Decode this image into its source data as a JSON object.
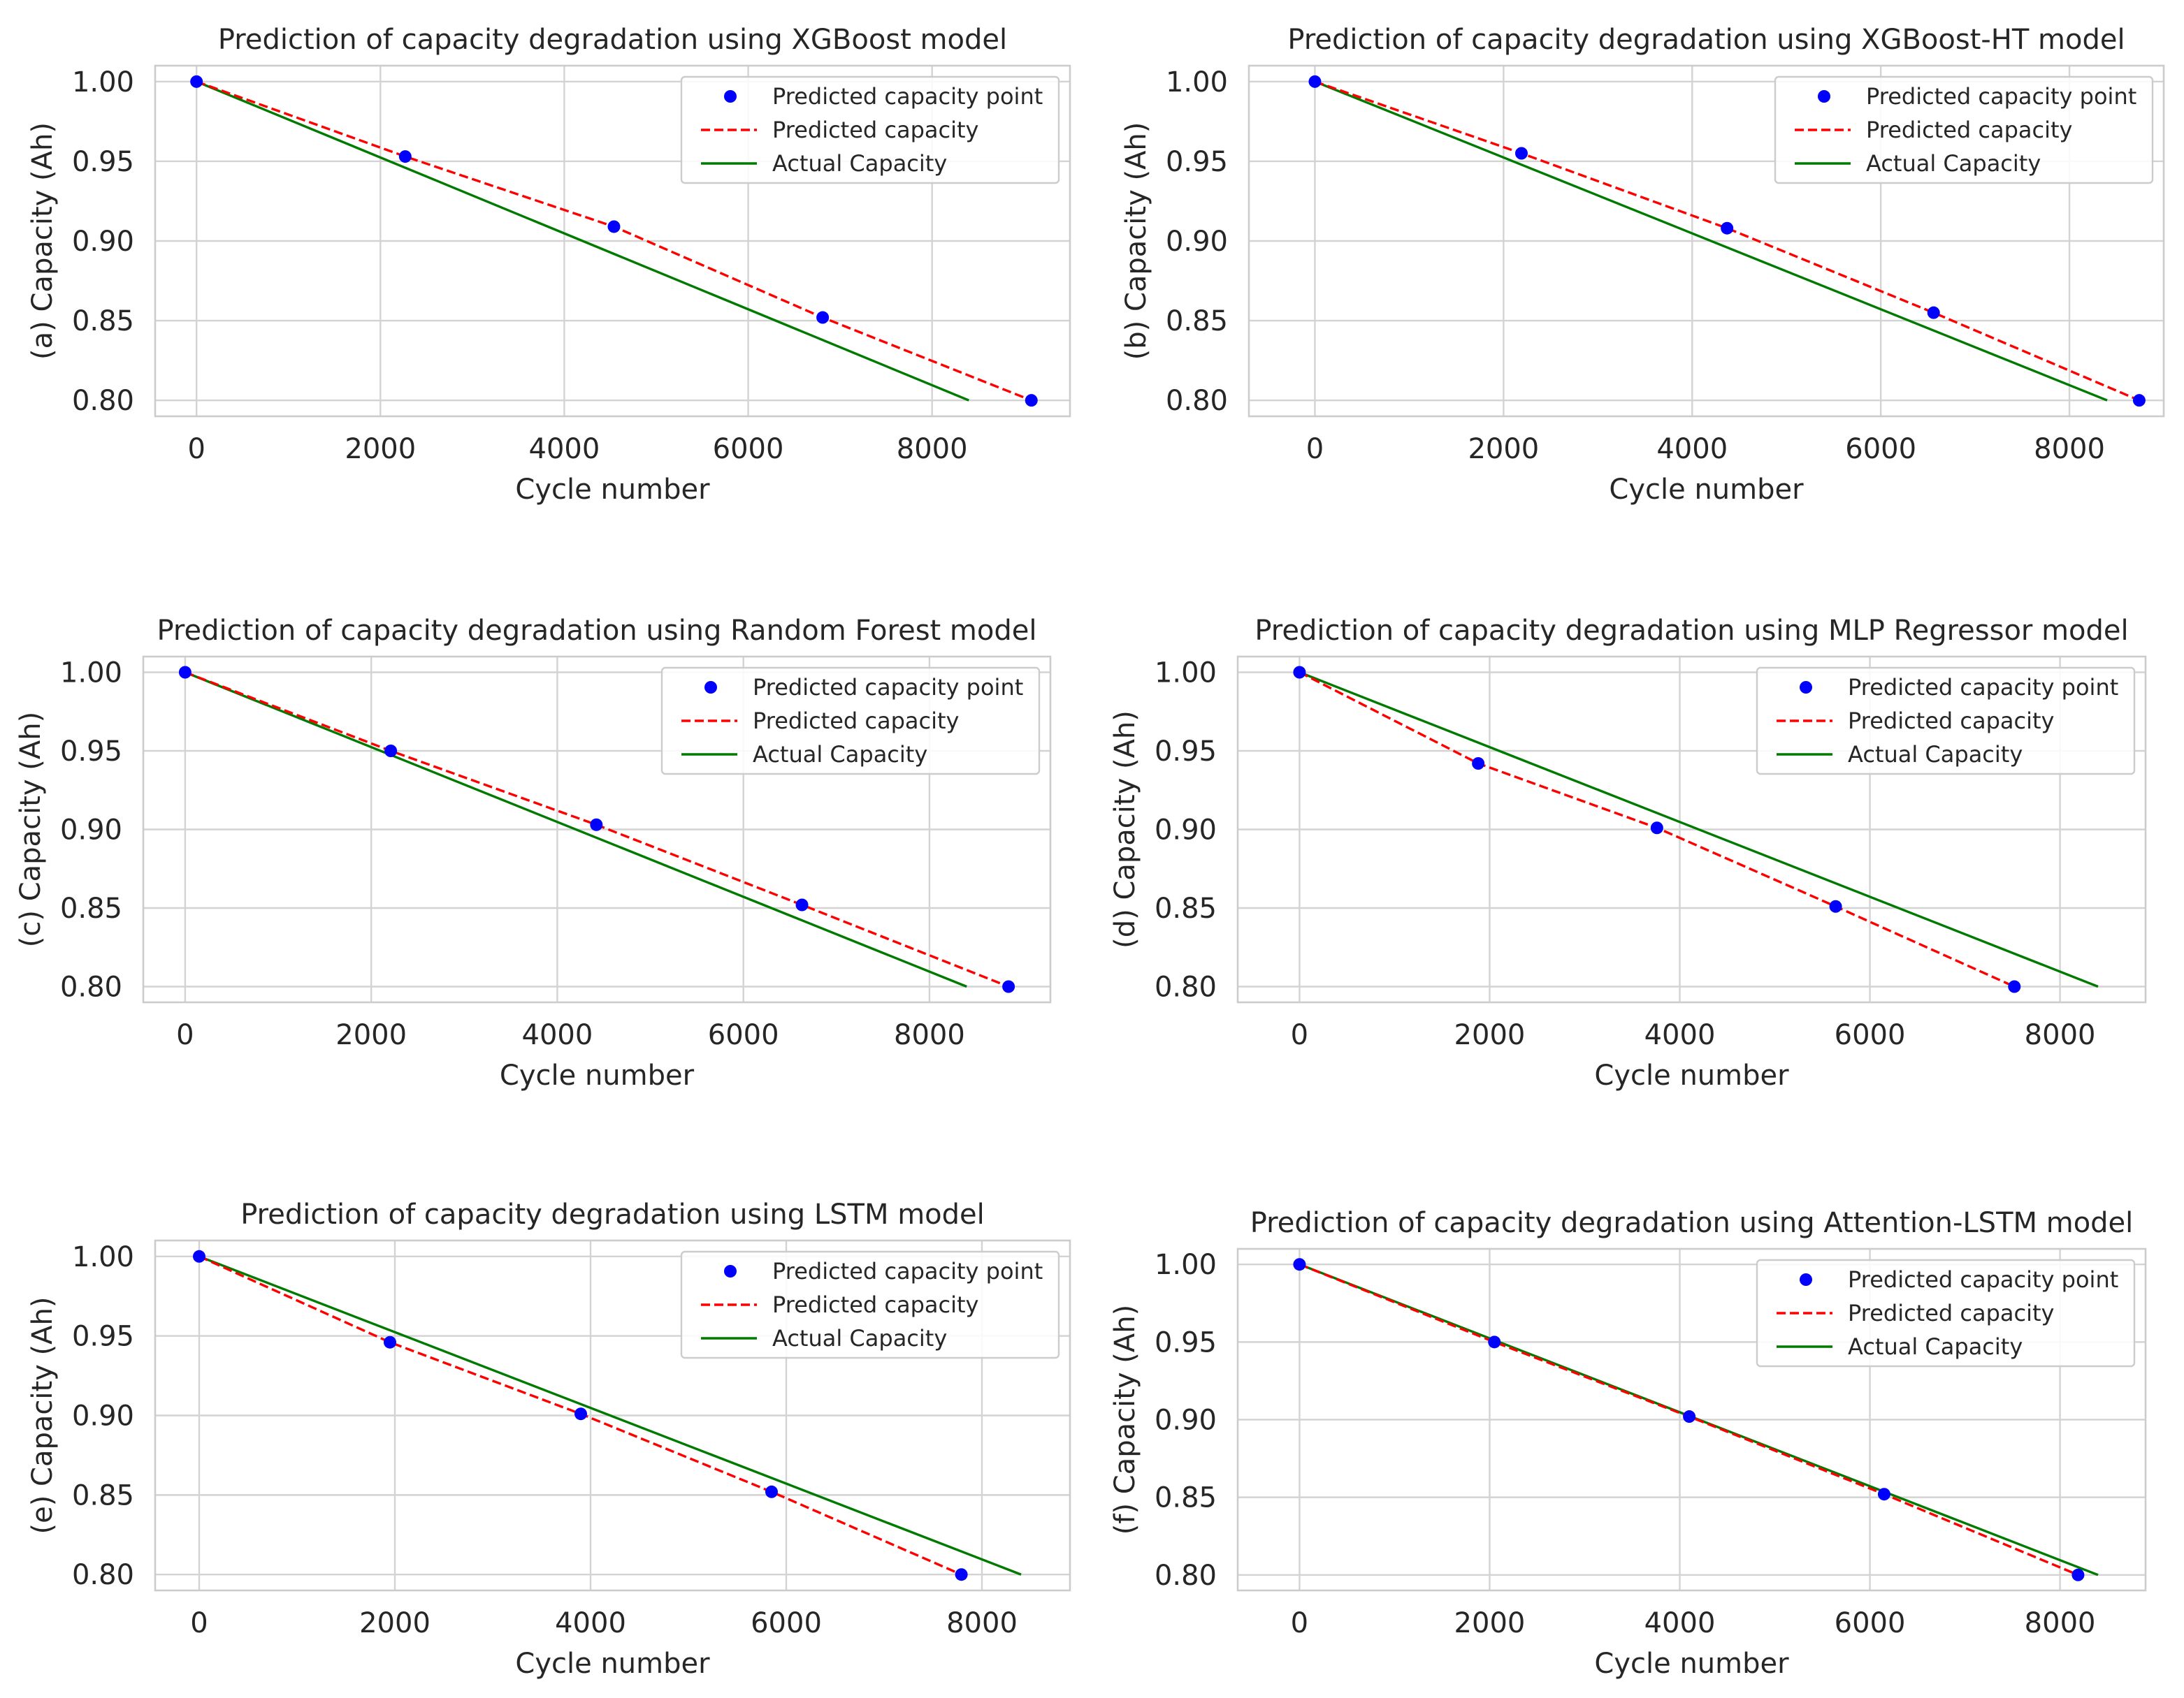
{
  "legend": {
    "point_label": "Predicted capacity point",
    "predicted_label": "Predicted capacity",
    "actual_label": "Actual Capacity"
  },
  "colors": {
    "point": "#0000ff",
    "predicted": "#ff0000",
    "actual": "#007a00",
    "grid": "#d3d3d3",
    "frame": "#cccccc",
    "text": "#262626"
  },
  "chart_data": [
    {
      "type": "line",
      "title": "Prediction of capacity degradation using XGBoost model",
      "xlabel": "Cycle number",
      "ylabel": "(a) Capacity (Ah)",
      "xlim": [
        -450,
        9500
      ],
      "ylim": [
        0.79,
        1.01
      ],
      "xticks": [
        0,
        2000,
        4000,
        6000,
        8000
      ],
      "yticks": [
        0.8,
        0.85,
        0.9,
        0.95,
        1.0
      ],
      "ytick_labels": [
        "0.80",
        "0.85",
        "0.90",
        "0.95",
        "1.00"
      ],
      "grid": true,
      "legend_position": "top-right",
      "series": [
        {
          "name": "Predicted capacity point",
          "kind": "scatter",
          "x": [
            0,
            2270,
            4540,
            6810,
            9080
          ],
          "y": [
            1.0,
            0.953,
            0.909,
            0.852,
            0.8
          ]
        },
        {
          "name": "Predicted capacity",
          "kind": "dashed-line",
          "x": [
            0,
            2270,
            4540,
            6810,
            9080
          ],
          "y": [
            1.0,
            0.953,
            0.909,
            0.852,
            0.8
          ]
        },
        {
          "name": "Actual Capacity",
          "kind": "line",
          "x": [
            0,
            8400
          ],
          "y": [
            1.0,
            0.8
          ]
        }
      ]
    },
    {
      "type": "line",
      "title": "Prediction of capacity degradation using XGBoost-HT model",
      "xlabel": "Cycle number",
      "ylabel": "(b) Capacity (Ah)",
      "xlim": [
        -700,
        9000
      ],
      "ylim": [
        0.79,
        1.01
      ],
      "xticks": [
        0,
        2000,
        4000,
        6000,
        8000
      ],
      "yticks": [
        0.8,
        0.85,
        0.9,
        0.95,
        1.0
      ],
      "ytick_labels": [
        "0.80",
        "0.85",
        "0.90",
        "0.95",
        "1.00"
      ],
      "grid": true,
      "legend_position": "top-right",
      "series": [
        {
          "name": "Predicted capacity point",
          "kind": "scatter",
          "x": [
            0,
            2190,
            4370,
            6560,
            8740
          ],
          "y": [
            1.0,
            0.955,
            0.908,
            0.855,
            0.8
          ]
        },
        {
          "name": "Predicted capacity",
          "kind": "dashed-line",
          "x": [
            0,
            2190,
            4370,
            6560,
            8740
          ],
          "y": [
            1.0,
            0.955,
            0.908,
            0.855,
            0.8
          ]
        },
        {
          "name": "Actual Capacity",
          "kind": "line",
          "x": [
            0,
            8400
          ],
          "y": [
            1.0,
            0.8
          ]
        }
      ]
    },
    {
      "type": "line",
      "title": "Prediction of capacity degradation using Random Forest model",
      "xlabel": "Cycle number",
      "ylabel": "(c) Capacity (Ah)",
      "xlim": [
        -450,
        9300
      ],
      "ylim": [
        0.79,
        1.01
      ],
      "xticks": [
        0,
        2000,
        4000,
        6000,
        8000
      ],
      "yticks": [
        0.8,
        0.85,
        0.9,
        0.95,
        1.0
      ],
      "ytick_labels": [
        "0.80",
        "0.85",
        "0.90",
        "0.95",
        "1.00"
      ],
      "grid": true,
      "legend_position": "top-right",
      "series": [
        {
          "name": "Predicted capacity point",
          "kind": "scatter",
          "x": [
            0,
            2210,
            4420,
            6630,
            8850
          ],
          "y": [
            1.0,
            0.95,
            0.903,
            0.852,
            0.8
          ]
        },
        {
          "name": "Predicted capacity",
          "kind": "dashed-line",
          "x": [
            0,
            2210,
            4420,
            6630,
            8850
          ],
          "y": [
            1.0,
            0.95,
            0.903,
            0.852,
            0.8
          ]
        },
        {
          "name": "Actual Capacity",
          "kind": "line",
          "x": [
            0,
            8400
          ],
          "y": [
            1.0,
            0.8
          ]
        }
      ]
    },
    {
      "type": "line",
      "title": "Prediction of capacity degradation using MLP Regressor model",
      "xlabel": "Cycle number",
      "ylabel": "(d) Capacity (Ah)",
      "xlim": [
        -650,
        8900
      ],
      "ylim": [
        0.79,
        1.01
      ],
      "xticks": [
        0,
        2000,
        4000,
        6000,
        8000
      ],
      "yticks": [
        0.8,
        0.85,
        0.9,
        0.95,
        1.0
      ],
      "ytick_labels": [
        "0.80",
        "0.85",
        "0.90",
        "0.95",
        "1.00"
      ],
      "grid": true,
      "legend_position": "top-right",
      "series": [
        {
          "name": "Predicted capacity point",
          "kind": "scatter",
          "x": [
            0,
            1880,
            3760,
            5640,
            7520
          ],
          "y": [
            1.0,
            0.942,
            0.901,
            0.851,
            0.8
          ]
        },
        {
          "name": "Predicted capacity",
          "kind": "dashed-line",
          "x": [
            0,
            1880,
            3760,
            5640,
            7520
          ],
          "y": [
            1.0,
            0.942,
            0.901,
            0.851,
            0.8
          ]
        },
        {
          "name": "Actual Capacity",
          "kind": "line",
          "x": [
            0,
            8400
          ],
          "y": [
            1.0,
            0.8
          ]
        }
      ]
    },
    {
      "type": "line",
      "title": "Prediction of capacity degradation using LSTM model",
      "xlabel": "Cycle number",
      "ylabel": "(e) Capacity (Ah)",
      "xlim": [
        -450,
        8900
      ],
      "ylim": [
        0.79,
        1.01
      ],
      "xticks": [
        0,
        2000,
        4000,
        6000,
        8000
      ],
      "yticks": [
        0.8,
        0.85,
        0.9,
        0.95,
        1.0
      ],
      "ytick_labels": [
        "0.80",
        "0.85",
        "0.90",
        "0.95",
        "1.00"
      ],
      "grid": true,
      "legend_position": "top-right",
      "series": [
        {
          "name": "Predicted capacity point",
          "kind": "scatter",
          "x": [
            0,
            1950,
            3900,
            5850,
            7790
          ],
          "y": [
            1.0,
            0.946,
            0.901,
            0.852,
            0.8
          ]
        },
        {
          "name": "Predicted capacity",
          "kind": "dashed-line",
          "x": [
            0,
            1950,
            3900,
            5850,
            7790
          ],
          "y": [
            1.0,
            0.946,
            0.901,
            0.852,
            0.8
          ]
        },
        {
          "name": "Actual Capacity",
          "kind": "line",
          "x": [
            0,
            8400
          ],
          "y": [
            1.0,
            0.8
          ]
        }
      ]
    },
    {
      "type": "line",
      "title": "Prediction of capacity degradation using Attention-LSTM model",
      "xlabel": "Cycle number",
      "ylabel": "(f) Capacity (Ah)",
      "xlim": [
        -650,
        8900
      ],
      "ylim": [
        0.79,
        1.01
      ],
      "xticks": [
        0,
        2000,
        4000,
        6000,
        8000
      ],
      "yticks": [
        0.8,
        0.85,
        0.9,
        0.95,
        1.0
      ],
      "ytick_labels": [
        "0.80",
        "0.85",
        "0.90",
        "0.95",
        "1.00"
      ],
      "grid": true,
      "legend_position": "top-right",
      "series": [
        {
          "name": "Predicted capacity point",
          "kind": "scatter",
          "x": [
            0,
            2050,
            4100,
            6150,
            8190
          ],
          "y": [
            1.0,
            0.95,
            0.902,
            0.852,
            0.8
          ]
        },
        {
          "name": "Predicted capacity",
          "kind": "dashed-line",
          "x": [
            0,
            2050,
            4100,
            6150,
            8190
          ],
          "y": [
            1.0,
            0.95,
            0.902,
            0.852,
            0.8
          ]
        },
        {
          "name": "Actual Capacity",
          "kind": "line",
          "x": [
            0,
            8400
          ],
          "y": [
            1.0,
            0.8
          ]
        }
      ]
    }
  ]
}
